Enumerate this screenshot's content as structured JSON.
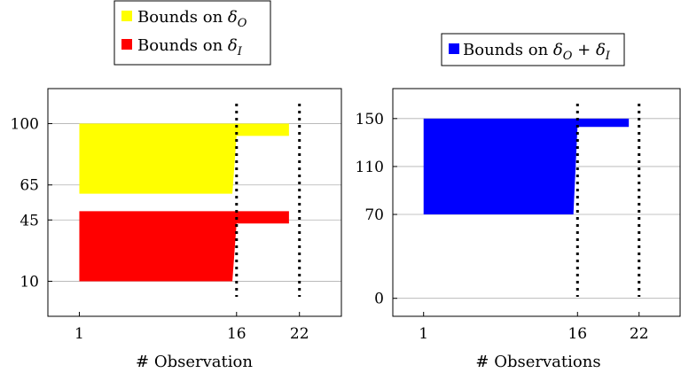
{
  "chart_data": [
    {
      "type": "area",
      "xlabel": "# Observation",
      "ylabel": "",
      "xlim": [
        -2,
        26
      ],
      "ylim": [
        -10,
        120
      ],
      "xticks": [
        1,
        16,
        22
      ],
      "yticks": [
        10,
        45,
        65,
        100
      ],
      "grid": "horizontal lines at y ticks",
      "legend_position": "top",
      "vertical_dotted_lines": [
        16,
        22
      ],
      "series": [
        {
          "name": "Bounds on δ_O",
          "color": "#ffff00",
          "legend_text": "Bounds on ",
          "legend_symbol": "δ",
          "legend_sub": "O",
          "upper": [
            [
              1,
              100
            ],
            [
              16,
              100
            ],
            [
              16.1,
              100
            ],
            [
              21,
              100
            ],
            [
              21,
              93
            ]
          ],
          "lower": [
            [
              1,
              60
            ],
            [
              15.6,
              60
            ],
            [
              16,
              93
            ]
          ]
        },
        {
          "name": "Bounds on δ_I",
          "color": "#ff0000",
          "legend_text": "Bounds on ",
          "legend_symbol": "δ",
          "legend_sub": "I",
          "upper": [
            [
              1,
              50
            ],
            [
              16,
              50
            ],
            [
              21,
              50
            ],
            [
              21,
              43
            ]
          ],
          "lower": [
            [
              1,
              10
            ],
            [
              15.6,
              10
            ],
            [
              16,
              43
            ]
          ]
        }
      ]
    },
    {
      "type": "area",
      "xlabel": "# Observations",
      "ylabel": "",
      "xlim": [
        -2,
        26
      ],
      "ylim": [
        -15,
        175
      ],
      "xticks": [
        1,
        16,
        22
      ],
      "yticks": [
        0,
        70,
        110,
        150
      ],
      "grid": "horizontal lines at y ticks",
      "legend_position": "top",
      "vertical_dotted_lines": [
        16,
        22
      ],
      "series": [
        {
          "name": "Bounds on δ_O + δ_I",
          "color": "#0000ff",
          "legend_text": "Bounds on ",
          "legend_symbol": "δ",
          "legend_sub": "O",
          "legend_plus": " + ",
          "legend_symbol2": "δ",
          "legend_sub2": "I",
          "upper": [
            [
              1,
              150
            ],
            [
              16,
              150
            ],
            [
              21,
              150
            ],
            [
              21,
              143
            ]
          ],
          "lower": [
            [
              1,
              70
            ],
            [
              15.6,
              70
            ],
            [
              16,
              143
            ]
          ]
        }
      ]
    }
  ],
  "ui": {
    "tick_labels_left": [
      "10",
      "45",
      "65",
      "100"
    ],
    "tick_labels_right": [
      "0",
      "70",
      "110",
      "150"
    ],
    "x_tick_labels": [
      "1",
      "16",
      "22"
    ]
  }
}
